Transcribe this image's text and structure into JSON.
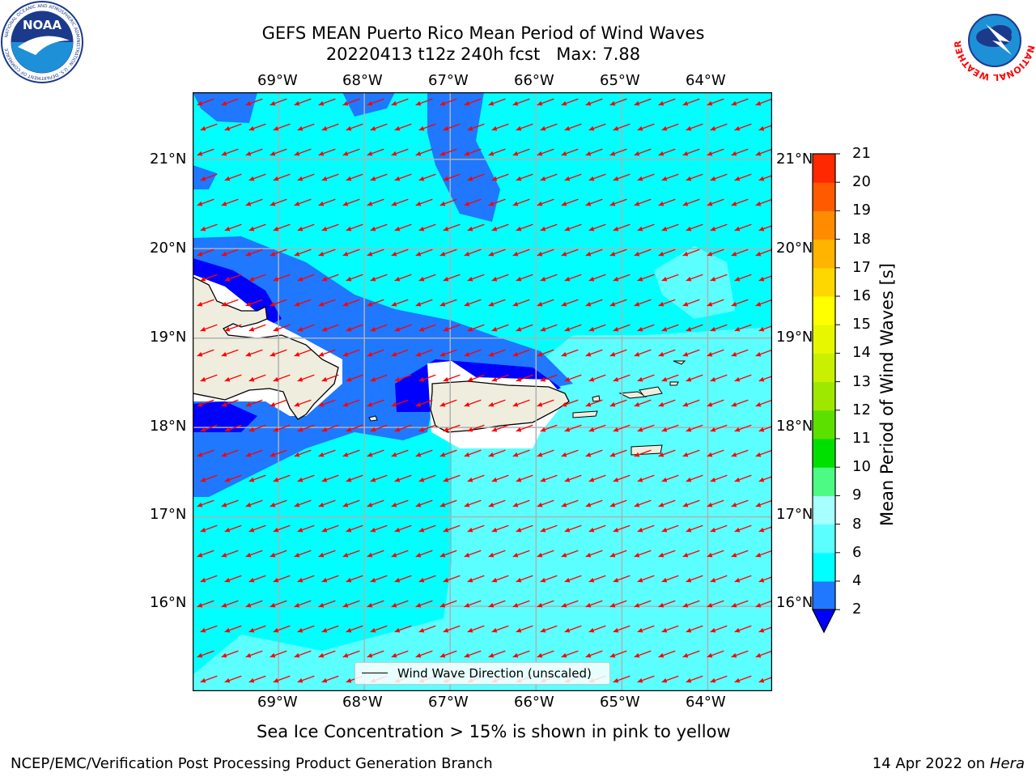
{
  "header": {
    "title": "GEFS MEAN Puerto Rico Mean Period of Wind Waves",
    "subtitle": "20220413 t12z 240h fcst   Max: 7.88"
  },
  "logos": {
    "left": {
      "name": "NOAA",
      "ring_text": "NATIONAL OCEANIC AND ATMOSPHERIC ADMINISTRATION · U.S. DEPARTMENT OF COMMERCE"
    },
    "right": {
      "name": "NATIONAL WEATHER SERVICE"
    }
  },
  "map": {
    "lon_labels": [
      "69°W",
      "68°W",
      "67°W",
      "66°W",
      "65°W",
      "64°W"
    ],
    "lat_labels": [
      "21°N",
      "20°N",
      "19°N",
      "18°N",
      "17°N",
      "16°N"
    ],
    "lon_range": [
      -70.0,
      -63.25
    ],
    "lat_range": [
      15.05,
      21.75
    ],
    "grid": true,
    "vector_direction_deg_toward": 250,
    "colors": {
      "land": "#efedde",
      "coast": "#000000",
      "arrow": "#ff0000",
      "grid": "#b0b0b0"
    },
    "legend": {
      "label": "Wind Wave Direction (unscaled)"
    }
  },
  "colorbar": {
    "title": "Mean Period of Wind Waves [s]",
    "levels": [
      2,
      4,
      6,
      8,
      9,
      10,
      11,
      12,
      13,
      14,
      15,
      16,
      17,
      18,
      19,
      20,
      21
    ],
    "colors": [
      "#1f78ff",
      "#00ffff",
      "#5cffff",
      "#a8ffff",
      "#4cfa84",
      "#00e000",
      "#5ce000",
      "#9ee800",
      "#c8f000",
      "#e6f700",
      "#ffff00",
      "#ffd700",
      "#ffb400",
      "#ff8c00",
      "#ff5a00",
      "#ff2800"
    ],
    "under_color": "#0000ff",
    "labels": [
      "2",
      "4",
      "6",
      "8",
      "9",
      "10",
      "11",
      "12",
      "13",
      "14",
      "15",
      "16",
      "17",
      "18",
      "19",
      "20",
      "21"
    ]
  },
  "caption": "Sea Ice Concentration > 15% is shown in pink to yellow",
  "footer": {
    "left": "NCEP/EMC/Verification Post Processing Product Generation Branch",
    "right_date": "14 Apr 2022 on ",
    "right_host": "Hera"
  }
}
